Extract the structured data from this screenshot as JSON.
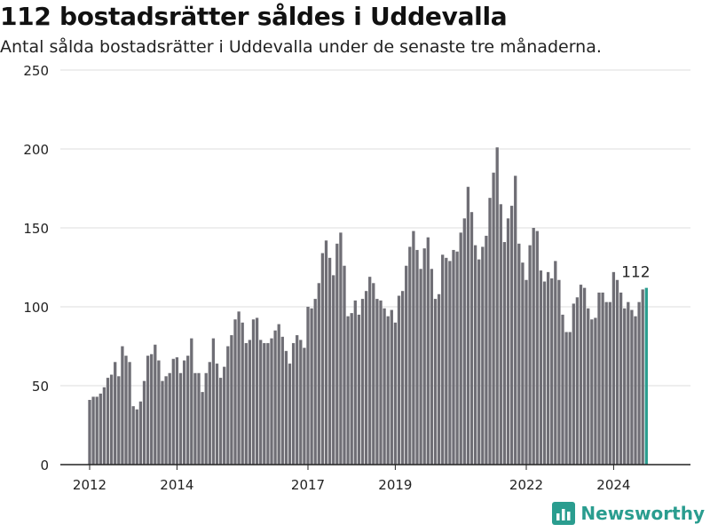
{
  "header": {
    "title": "112 bostadsrätter såldes i Uddevalla",
    "subtitle": "Antal sålda bostadsrätter i Uddevalla under de senaste tre månaderna."
  },
  "brand": {
    "name": "Newsworthy",
    "icon": "bar-chart-logo-icon",
    "color": "#2a9d8f"
  },
  "chart_data": {
    "type": "bar",
    "title": "112 bostadsrätter såldes i Uddevalla",
    "subtitle": "Antal sålda bostadsrätter i Uddevalla under de senaste tre månaderna.",
    "xlabel": "",
    "ylabel": "",
    "ylim": [
      0,
      250
    ],
    "yticks": [
      0,
      50,
      100,
      150,
      200,
      250
    ],
    "xticks": [
      "2012",
      "2014",
      "2017",
      "2019",
      "2022",
      "2024"
    ],
    "x_start": "2012-01",
    "x_step": "month",
    "bar_color": "#6f6e75",
    "highlight_color": "#2a9d8f",
    "last_label": "112",
    "grid": true,
    "values": [
      41,
      43,
      43,
      45,
      49,
      55,
      57,
      65,
      56,
      75,
      69,
      65,
      37,
      35,
      40,
      53,
      69,
      70,
      76,
      66,
      53,
      56,
      58,
      67,
      68,
      58,
      66,
      69,
      80,
      58,
      58,
      46,
      58,
      65,
      80,
      64,
      55,
      62,
      75,
      82,
      92,
      97,
      90,
      77,
      79,
      92,
      93,
      79,
      77,
      77,
      80,
      85,
      89,
      81,
      72,
      64,
      77,
      82,
      79,
      74,
      100,
      99,
      105,
      115,
      134,
      142,
      131,
      120,
      140,
      147,
      126,
      94,
      96,
      104,
      95,
      105,
      110,
      119,
      115,
      105,
      104,
      99,
      94,
      98,
      90,
      107,
      110,
      126,
      138,
      148,
      136,
      124,
      137,
      144,
      124,
      105,
      108,
      133,
      131,
      129,
      136,
      135,
      147,
      156,
      176,
      160,
      139,
      130,
      138,
      145,
      169,
      185,
      201,
      165,
      141,
      156,
      164,
      183,
      140,
      128,
      117,
      139,
      150,
      148,
      123,
      116,
      122,
      118,
      129,
      117,
      95,
      84,
      84,
      102,
      106,
      114,
      112,
      99,
      92,
      93,
      109,
      109,
      103,
      103,
      122,
      117,
      109,
      99,
      103,
      98,
      94,
      103,
      111,
      112
    ]
  }
}
